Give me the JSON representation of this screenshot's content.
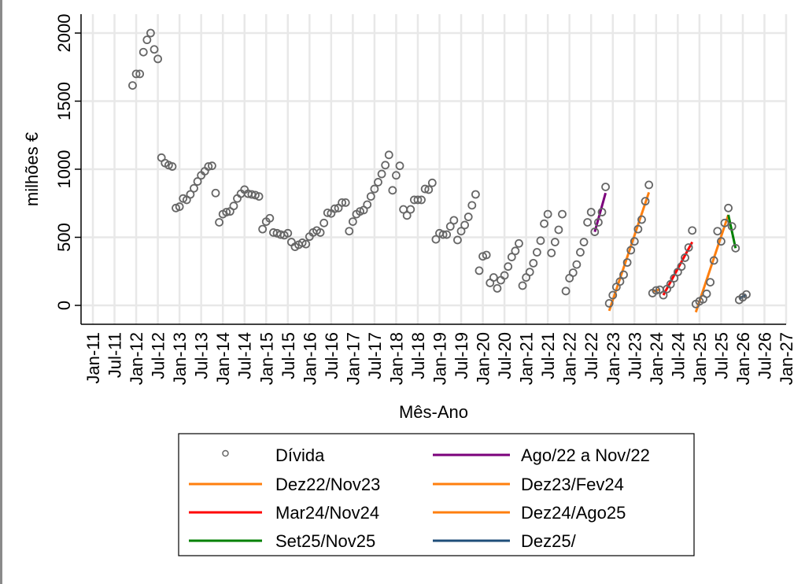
{
  "chart_data": {
    "type": "scatter",
    "title": "",
    "xlabel": "Mês-Ano",
    "ylabel": "milhões €",
    "ylim": [
      0,
      2000
    ],
    "yticks": [
      0,
      500,
      1000,
      1500,
      2000
    ],
    "xlim": [
      "Jan-11",
      "Jan-27"
    ],
    "xtick_labels": [
      "Jan-11",
      "Jul-11",
      "Jan-12",
      "Jul-12",
      "Jan-13",
      "Jul-13",
      "Jan-14",
      "Jul-14",
      "Jan-15",
      "Jul-15",
      "Jan-16",
      "Jul-16",
      "Jan-17",
      "Jul-17",
      "Jan-18",
      "Jul-18",
      "Jan-19",
      "Jul-19",
      "Jan-20",
      "Jul-20",
      "Jan-21",
      "Jul-21",
      "Jan-22",
      "Jul-22",
      "Jan-23",
      "Jul-23",
      "Jan-24",
      "Jul-24",
      "Jan-25",
      "Jul-25",
      "Jan-26",
      "Jul-26",
      "Jan-27"
    ],
    "grid": true,
    "legend_position": "bottom",
    "series": [
      {
        "name": "Dívida",
        "kind": "scatter",
        "color": "#666666",
        "start": "Dec-11",
        "values": [
          1615,
          1700,
          1700,
          1860,
          1950,
          2000,
          1880,
          1810,
          1085,
          1045,
          1030,
          1020,
          715,
          725,
          785,
          775,
          815,
          860,
          910,
          955,
          985,
          1020,
          1025,
          825,
          610,
          670,
          685,
          690,
          730,
          785,
          820,
          850,
          820,
          815,
          810,
          800,
          560,
          615,
          640,
          535,
          530,
          520,
          515,
          530,
          465,
          430,
          445,
          460,
          450,
          505,
          535,
          550,
          535,
          605,
          680,
          675,
          710,
          715,
          755,
          755,
          545,
          615,
          670,
          690,
          700,
          740,
          800,
          855,
          905,
          965,
          1030,
          1105,
          845,
          955,
          1025,
          705,
          660,
          705,
          775,
          775,
          775,
          855,
          850,
          900,
          485,
          530,
          520,
          520,
          580,
          625,
          480,
          545,
          590,
          650,
          735,
          815,
          255,
          360,
          370,
          165,
          205,
          125,
          185,
          220,
          285,
          355,
          400,
          455,
          145,
          205,
          245,
          310,
          390,
          475,
          600,
          670,
          385,
          465,
          555,
          670,
          105,
          200,
          240,
          300,
          390,
          465,
          610,
          685,
          540,
          610,
          685,
          870,
          15,
          75,
          135,
          175,
          225,
          315,
          405,
          470,
          560,
          630,
          765,
          885,
          90,
          110,
          115,
          75,
          120,
          155,
          200,
          245,
          285,
          350,
          425,
          550,
          10,
          30,
          45,
          85,
          170,
          330,
          545,
          470,
          605,
          715,
          580,
          420,
          40,
          60,
          80
        ]
      },
      {
        "name": "Ago/22 a Nov/22",
        "kind": "trend",
        "color": "#7b007b",
        "from": "Aug-22",
        "to": "Nov-22",
        "y_from": 540,
        "y_to": 825
      },
      {
        "name": "Dez22/Nov23",
        "kind": "trend",
        "color": "#ff7f0e",
        "from": "Dec-22",
        "to": "Nov-23",
        "y_from": -40,
        "y_to": 830
      },
      {
        "name": "Dez23/Fev24",
        "kind": "trend",
        "color": "#ff7f0e",
        "from": "Dec-23",
        "to": "Feb-24",
        "y_from": 100,
        "y_to": 118
      },
      {
        "name": "Mar24/Nov24",
        "kind": "trend",
        "color": "#ff0000",
        "from": "Mar-24",
        "to": "Nov-24",
        "y_from": 75,
        "y_to": 465
      },
      {
        "name": "Dez24/Ago25",
        "kind": "trend",
        "color": "#ff7f0e",
        "from": "Dec-24",
        "to": "Sep-25",
        "y_from": -50,
        "y_to": 665
      },
      {
        "name": "Set25/Nov25",
        "kind": "trend",
        "color": "#008000",
        "from": "Sep-25",
        "to": "Nov-25",
        "y_from": 665,
        "y_to": 420
      },
      {
        "name": "Dez25/",
        "kind": "trend",
        "color": "#1f4e79",
        "from": "Dec-25",
        "to": "Feb-26",
        "y_from": 50,
        "y_to": 78
      }
    ],
    "legend": [
      [
        "Dívida",
        "Ago/22 a Nov/22"
      ],
      [
        "Dez22/Nov23",
        "Dez23/Fev24"
      ],
      [
        "Mar24/Nov24",
        "Dez24/Ago25"
      ],
      [
        "Set25/Nov25",
        "Dez25/"
      ]
    ]
  }
}
